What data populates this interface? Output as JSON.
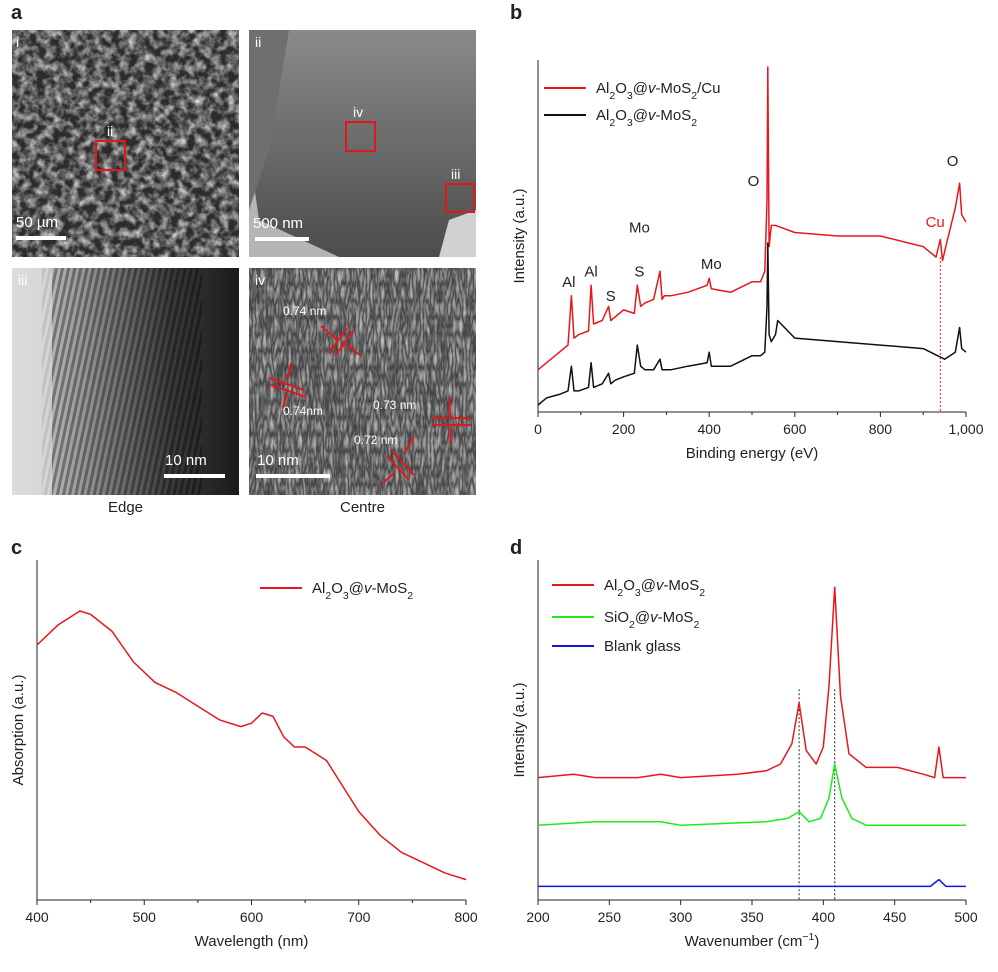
{
  "panel_labels": {
    "a": "a",
    "b": "b",
    "c": "c",
    "d": "d"
  },
  "panel_a": {
    "tiles": [
      {
        "roman": "i",
        "scale": "50 µm",
        "inset_labels": [
          "ii"
        ]
      },
      {
        "roman": "ii",
        "scale": "500 nm",
        "inset_labels": [
          "iv",
          "iii"
        ]
      },
      {
        "roman": "iii",
        "scale": "10 nm"
      },
      {
        "roman": "iv",
        "scale": "10 nm",
        "spacings": [
          "0.74 nm",
          "0.74nm",
          "0.73 nm",
          "0.72 nm"
        ]
      }
    ],
    "captions": {
      "edge": "Edge",
      "centre": "Centre"
    }
  },
  "chart_data": [
    {
      "panel": "b",
      "type": "line",
      "xlabel": "Binding energy (eV)",
      "ylabel": "Intensity (a.u.)",
      "xlim": [
        0,
        1000
      ],
      "xticks": [
        "0",
        "200",
        "400",
        "600",
        "800",
        "1,000"
      ],
      "legend": "top-left",
      "series": [
        {
          "name_parts": [
            "Al",
            "2",
            "O",
            "3",
            "@",
            "v",
            "-MoS",
            "2",
            "/Cu"
          ],
          "color": "#e8171c",
          "x": [
            0,
            20,
            50,
            70,
            78,
            84,
            95,
            118,
            124,
            130,
            150,
            165,
            170,
            180,
            200,
            225,
            232,
            240,
            250,
            270,
            285,
            290,
            295,
            310,
            350,
            395,
            400,
            405,
            450,
            500,
            520,
            530,
            535,
            537,
            540,
            545,
            555,
            600,
            700,
            800,
            900,
            930,
            940,
            945,
            955,
            975,
            985,
            990,
            1000
          ],
          "y": [
            12,
            14,
            17,
            19,
            33,
            21,
            22,
            23,
            36,
            25,
            26,
            30,
            26,
            27,
            29,
            28,
            36,
            30,
            31,
            32,
            40,
            32,
            33,
            33,
            34,
            36,
            38,
            35,
            34,
            37,
            37,
            40,
            60,
            98,
            47,
            53,
            53,
            51,
            50,
            50,
            47,
            44,
            49,
            43,
            48,
            58,
            65,
            56,
            54
          ]
        },
        {
          "name_parts": [
            "Al",
            "2",
            "O",
            "3",
            "@",
            "v",
            "-MoS",
            "2"
          ],
          "color": "#111111",
          "x": [
            0,
            20,
            50,
            70,
            78,
            84,
            95,
            118,
            124,
            130,
            150,
            165,
            170,
            180,
            200,
            225,
            232,
            240,
            250,
            270,
            285,
            290,
            295,
            310,
            350,
            395,
            400,
            405,
            450,
            500,
            520,
            530,
            535,
            537,
            540,
            545,
            555,
            560,
            600,
            700,
            800,
            900,
            950,
            975,
            985,
            990,
            1000
          ],
          "y": [
            2,
            4,
            5,
            6,
            13,
            6,
            6,
            7,
            14,
            7,
            8,
            11,
            8,
            9,
            10,
            11,
            19,
            13,
            12,
            12,
            15,
            12,
            12,
            12,
            13,
            14,
            17,
            13,
            13,
            16,
            16,
            17,
            30,
            48,
            22,
            20,
            22,
            26,
            21,
            20,
            19,
            18,
            15,
            17,
            24,
            18,
            17
          ]
        }
      ],
      "annotations": [
        "Al",
        "Al",
        "S",
        "Mo",
        "S",
        "Mo",
        "O",
        "O",
        "Cu"
      ]
    },
    {
      "panel": "c",
      "type": "line",
      "xlabel": "Wavelength (nm)",
      "ylabel": "Absorption (a.u.)",
      "xlim": [
        400,
        800
      ],
      "xticks": [
        "400",
        "500",
        "600",
        "700",
        "800"
      ],
      "legend": "top-right",
      "series": [
        {
          "name_parts": [
            "Al",
            "2",
            "O",
            "3",
            "@",
            "v",
            "-MoS",
            "2"
          ],
          "color": "#e8171c",
          "x": [
            400,
            420,
            440,
            450,
            470,
            490,
            510,
            530,
            550,
            570,
            590,
            600,
            610,
            620,
            630,
            640,
            650,
            660,
            670,
            680,
            700,
            720,
            740,
            760,
            780,
            800
          ],
          "y": [
            75,
            81,
            85,
            84,
            79,
            70,
            64,
            61,
            57,
            53,
            51,
            52,
            55,
            54,
            48,
            45,
            45,
            43,
            41,
            36,
            26,
            19,
            14,
            11,
            8,
            6
          ]
        }
      ]
    },
    {
      "panel": "d",
      "type": "line",
      "xlabel_parts": [
        "Wavenumber (cm",
        "−1",
        ")"
      ],
      "ylabel": "Intensity (a.u.)",
      "xlim": [
        200,
        500
      ],
      "xticks": [
        "200",
        "250",
        "300",
        "350",
        "400",
        "450",
        "500"
      ],
      "legend": "top-left",
      "vlines": [
        383,
        408
      ],
      "series": [
        {
          "name_parts": [
            "Al",
            "2",
            "O",
            "3",
            "@",
            "v",
            "-MoS",
            "2"
          ],
          "color": "#e8171c",
          "x": [
            200,
            225,
            240,
            270,
            286,
            300,
            340,
            360,
            370,
            378,
            383,
            388,
            395,
            400,
            404,
            408,
            412,
            418,
            430,
            452,
            470,
            478,
            481,
            484,
            490,
            500
          ],
          "y": [
            36,
            37,
            36,
            36,
            37,
            36,
            37,
            38,
            40,
            46,
            58,
            44,
            40,
            45,
            63,
            92,
            60,
            43,
            39,
            39,
            37,
            36,
            45,
            36,
            36,
            36
          ]
        },
        {
          "name_parts": [
            "SiO",
            "2",
            "@",
            "v",
            "-MoS",
            "2"
          ],
          "color": "#1bed1b",
          "x": [
            200,
            240,
            286,
            300,
            360,
            375,
            383,
            390,
            398,
            404,
            408,
            413,
            420,
            430,
            470,
            500
          ],
          "y": [
            22,
            23,
            23,
            22,
            23,
            24,
            26,
            23,
            24,
            30,
            40,
            30,
            24,
            22,
            22,
            22
          ]
        },
        {
          "name_parts": [
            "Blank glass"
          ],
          "color": "#1515e0",
          "x": [
            200,
            300,
            400,
            475,
            481,
            486,
            500
          ],
          "y": [
            4,
            4,
            4,
            4,
            6,
            4,
            4
          ]
        }
      ]
    }
  ]
}
